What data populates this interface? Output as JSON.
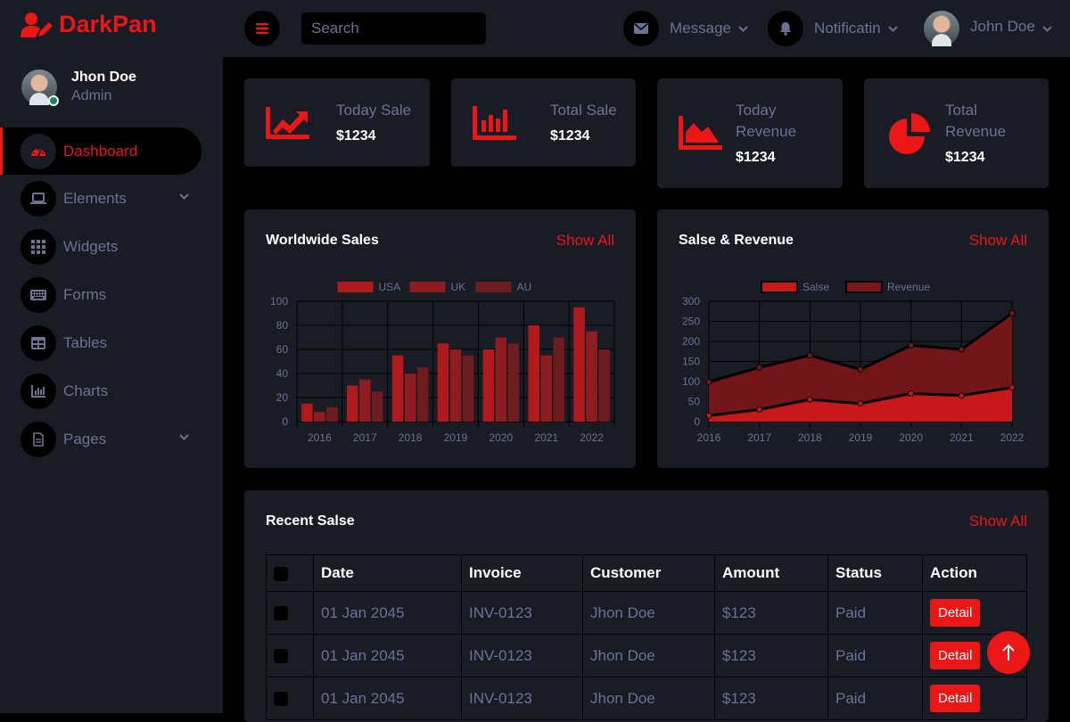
{
  "brand": {
    "name": "DarkPan"
  },
  "profile": {
    "name": "Jhon Doe",
    "role": "Admin"
  },
  "nav": {
    "items": [
      {
        "label": "Dashboard",
        "icon": "gauge-icon",
        "active": true
      },
      {
        "label": "Elements",
        "icon": "laptop-icon",
        "dropdown": true
      },
      {
        "label": "Widgets",
        "icon": "grid-icon"
      },
      {
        "label": "Forms",
        "icon": "keyboard-icon"
      },
      {
        "label": "Tables",
        "icon": "table-icon"
      },
      {
        "label": "Charts",
        "icon": "chart-icon"
      },
      {
        "label": "Pages",
        "icon": "file-icon",
        "dropdown": true
      }
    ]
  },
  "topbar": {
    "search_placeholder": "Search",
    "message_label": "Message",
    "notification_label": "Notificatin",
    "user_name": "John Doe"
  },
  "stats": [
    {
      "label_lines": [
        "Today Sale"
      ],
      "value": "$1234",
      "icon": "chart-line-icon"
    },
    {
      "label_lines": [
        "Total Sale"
      ],
      "value": "$1234",
      "icon": "chart-bar-icon"
    },
    {
      "label_lines": [
        "Today",
        "Revenue"
      ],
      "value": "$1234",
      "icon": "chart-area-icon"
    },
    {
      "label_lines": [
        "Total",
        "Revenue"
      ],
      "value": "$1234",
      "icon": "chart-pie-icon"
    }
  ],
  "worldwide": {
    "title": "Worldwide Sales",
    "link": "Show All"
  },
  "revenue": {
    "title": "Salse & Revenue",
    "link": "Show All"
  },
  "recent": {
    "title": "Recent Salse",
    "link": "Show All",
    "columns": [
      "Date",
      "Invoice",
      "Customer",
      "Amount",
      "Status",
      "Action"
    ],
    "rows": [
      {
        "date": "01 Jan 2045",
        "invoice": "INV-0123",
        "customer": "Jhon Doe",
        "amount": "$123",
        "status": "Paid",
        "action": "Detail"
      },
      {
        "date": "01 Jan 2045",
        "invoice": "INV-0123",
        "customer": "Jhon Doe",
        "amount": "$123",
        "status": "Paid",
        "action": "Detail"
      },
      {
        "date": "01 Jan 2045",
        "invoice": "INV-0123",
        "customer": "Jhon Doe",
        "amount": "$123",
        "status": "Paid",
        "action": "Detail"
      }
    ]
  },
  "colors": {
    "accent": "#eb1616",
    "panel": "#191c24",
    "background": "#000000",
    "muted": "#6c7293"
  },
  "chart_data": [
    {
      "type": "bar",
      "categories": [
        "2016",
        "2017",
        "2018",
        "2019",
        "2020",
        "2021",
        "2022"
      ],
      "series": [
        {
          "name": "USA",
          "values": [
            15,
            30,
            55,
            65,
            60,
            80,
            95
          ],
          "color": "#b11a1d"
        },
        {
          "name": "UK",
          "values": [
            8,
            35,
            40,
            60,
            70,
            55,
            75
          ],
          "color": "#8e1c20"
        },
        {
          "name": "AU",
          "values": [
            12,
            25,
            45,
            55,
            65,
            70,
            60
          ],
          "color": "#6d1c20"
        }
      ],
      "ylim": [
        0,
        100
      ],
      "yticks": [
        0,
        20,
        40,
        60,
        80,
        100
      ],
      "grid": true,
      "legend": "top"
    },
    {
      "type": "area",
      "categories": [
        "2016",
        "2017",
        "2018",
        "2019",
        "2020",
        "2021",
        "2022"
      ],
      "series": [
        {
          "name": "Salse",
          "values": [
            15,
            30,
            55,
            45,
            70,
            65,
            85
          ],
          "color": "#c8181b"
        },
        {
          "name": "Revenue",
          "values": [
            99,
            135,
            165,
            130,
            190,
            180,
            270
          ],
          "color": "#7d1619"
        }
      ],
      "ylim": [
        0,
        300
      ],
      "yticks": [
        0,
        50,
        100,
        150,
        200,
        250,
        300
      ],
      "grid": true,
      "legend": "top"
    }
  ]
}
